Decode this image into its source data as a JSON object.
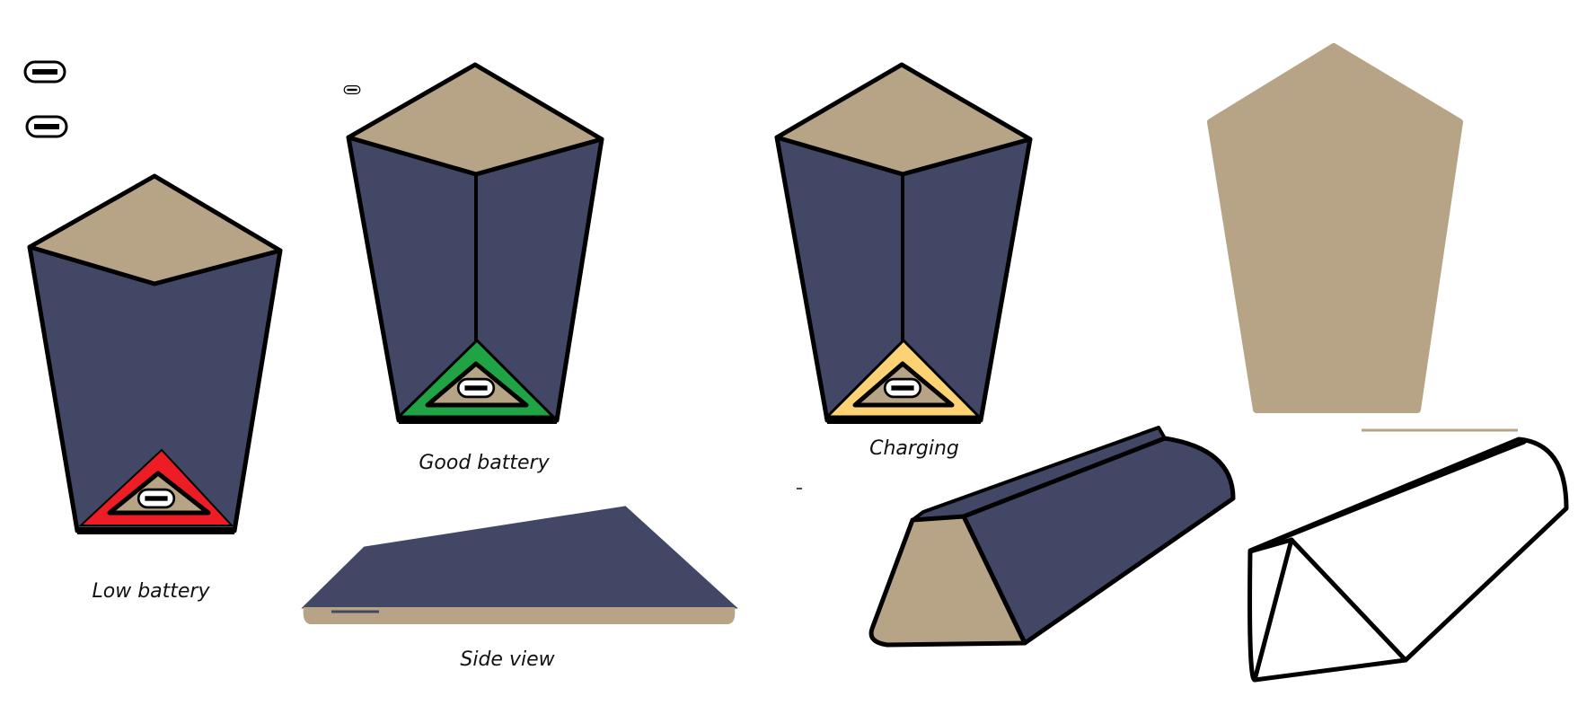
{
  "captions": {
    "low_battery": "Low battery",
    "good_battery": "Good battery",
    "charging": "Charging",
    "side_view": "Side view"
  },
  "colors": {
    "body_navy": "#434766",
    "top_tan": "#b7a385",
    "outline": "#000000",
    "low_red": "#ee1c24",
    "good_green": "#1fa345",
    "charging_yellow": "#fdd274",
    "background": "#ffffff"
  },
  "icons": {
    "usb_port": "usb-port-icon",
    "battery_low": "red-triangle-icon",
    "battery_good": "green-triangle-icon",
    "battery_charging": "yellow-triangle-icon"
  }
}
